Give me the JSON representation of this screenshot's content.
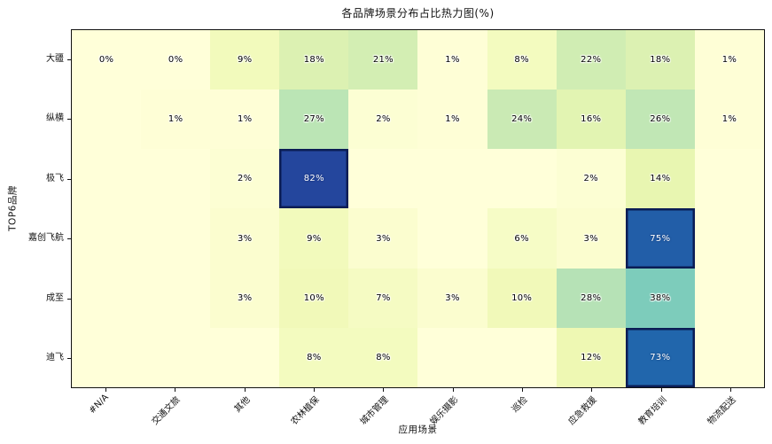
{
  "chart_data": {
    "type": "heatmap",
    "title": "各品牌场景分布占比热力图(%)",
    "xlabel": "应用场景",
    "ylabel": "TOP6品牌",
    "columns": [
      "#N/A",
      "交通文旅",
      "其他",
      "农林植保",
      "城市管理",
      "娱乐摄影",
      "巡检",
      "应急救援",
      "教育培训",
      "物流配送"
    ],
    "rows": [
      "大疆",
      "纵横",
      "极飞",
      "嘉创飞航",
      "成至",
      "迪飞"
    ],
    "values": [
      [
        0,
        0,
        9,
        18,
        21,
        1,
        8,
        22,
        18,
        1
      ],
      [
        null,
        1,
        1,
        27,
        2,
        1,
        24,
        16,
        26,
        1
      ],
      [
        null,
        null,
        2,
        82,
        null,
        null,
        null,
        2,
        14,
        null
      ],
      [
        null,
        null,
        3,
        9,
        3,
        null,
        6,
        3,
        75,
        null
      ],
      [
        null,
        null,
        3,
        10,
        7,
        3,
        10,
        28,
        38,
        null
      ],
      [
        null,
        null,
        null,
        8,
        8,
        null,
        null,
        12,
        73,
        null
      ]
    ],
    "unit": "%",
    "colormap": "YlGnBu",
    "vmin": 0,
    "vmax": 100,
    "highlight_threshold": 50,
    "legend_position": "none",
    "grid": false,
    "colors": {
      "cmap_stops": [
        "#ffffd9",
        "#edf8b1",
        "#c7e9b4",
        "#7fcdbb",
        "#41b6c4",
        "#1d91c0",
        "#225ea8",
        "#253494",
        "#081d58"
      ],
      "highlight_border": "#0b1d55",
      "spine": "#111111",
      "annotation_dark": "#000000",
      "annotation_light": "#ffffff",
      "background": "#ffffff"
    }
  }
}
